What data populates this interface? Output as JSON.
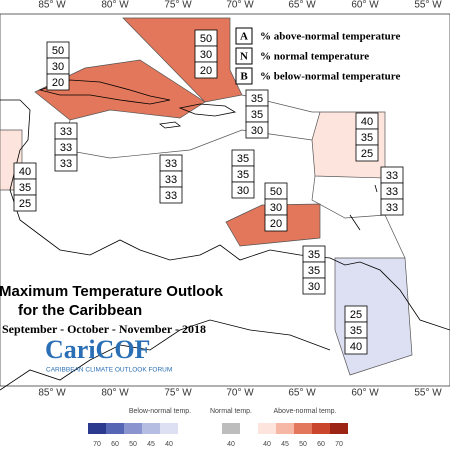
{
  "longitudes_top": [
    "85° W",
    "80° W",
    "75° W",
    "70° W",
    "65° W",
    "60° W",
    "55° W"
  ],
  "longitudes_bottom": [
    "85° W",
    "80° W",
    "75° W",
    "70° W",
    "65° W",
    "60° W",
    "55° W"
  ],
  "legend": [
    {
      "letter": "A",
      "text": "% above-normal temperature"
    },
    {
      "letter": "N",
      "text": "% normal temperature"
    },
    {
      "letter": "B",
      "text": "% below-normal temperature"
    }
  ],
  "regions": [
    {
      "probs": [
        50,
        30,
        20
      ]
    },
    {
      "probs": [
        50,
        30,
        20
      ]
    },
    {
      "probs": [
        33,
        33,
        33
      ]
    },
    {
      "probs": [
        35,
        35,
        30
      ]
    },
    {
      "probs": [
        40,
        35,
        25
      ]
    },
    {
      "probs": [
        33,
        33,
        33
      ]
    },
    {
      "probs": [
        35,
        35,
        30
      ]
    },
    {
      "probs": [
        33,
        33,
        33
      ]
    },
    {
      "probs": [
        40,
        35,
        25
      ]
    },
    {
      "probs": [
        50,
        30,
        20
      ]
    },
    {
      "probs": [
        35,
        35,
        30
      ]
    },
    {
      "probs": [
        25,
        35,
        40
      ]
    }
  ],
  "title": {
    "line1": "Maximum Temperature Outlook",
    "line2": "for the Caribbean",
    "season": "September - October - November - 2018"
  },
  "logo": {
    "name": "CariCOF",
    "tagline": "CARIBBEAN CLIMATE OUTLOOK FORUM"
  },
  "colorbar": {
    "below": {
      "label": "Below-normal temp.",
      "ticks": [
        70,
        60,
        50,
        45,
        40
      ],
      "colors": [
        "#2b3a8f",
        "#5566b5",
        "#8a95cf",
        "#b6bde2",
        "#dde0f3"
      ]
    },
    "normal": {
      "label": "Normal temp.",
      "ticks": [
        40
      ],
      "colors": [
        "#bdbdbd"
      ]
    },
    "above": {
      "label": "Above-normal temp.",
      "ticks": [
        40,
        45,
        50,
        60,
        70
      ],
      "colors": [
        "#fde4dc",
        "#f6b8a4",
        "#e2775b",
        "#c9452c",
        "#9b2414"
      ]
    }
  }
}
